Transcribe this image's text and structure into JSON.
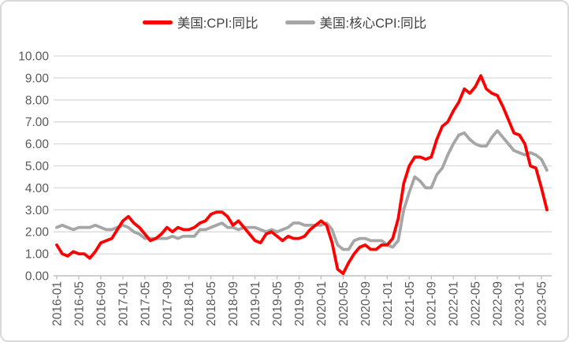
{
  "legend": {
    "items": [
      {
        "label": "美国:CPI:同比",
        "color": "#ff0000"
      },
      {
        "label": "美国:核心CPI:同比",
        "color": "#a6a6a6"
      }
    ]
  },
  "colors": {
    "grid": "#d9d9d9",
    "axis": "#bfbfbf",
    "tick_text": "#595959",
    "legend_text": "#404040",
    "frame_border": "#d9d9d9",
    "background": "#ffffff"
  },
  "chart_data": {
    "type": "line",
    "title": "",
    "xlabel": "",
    "ylabel": "",
    "ylim": [
      0,
      10
    ],
    "y_tick_labels": [
      "0.00",
      "1.00",
      "2.00",
      "3.00",
      "4.00",
      "5.00",
      "6.00",
      "7.00",
      "8.00",
      "9.00",
      "10.00"
    ],
    "grid": true,
    "legend_position": "top",
    "x_tick_every_n_months": 4,
    "x_tick_labels": [
      "2016-01",
      "2016-05",
      "2016-09",
      "2017-01",
      "2017-05",
      "2017-09",
      "2018-01",
      "2018-05",
      "2018-09",
      "2019-01",
      "2019-05",
      "2019-09",
      "2020-01",
      "2020-05",
      "2020-09",
      "2021-01",
      "2021-05",
      "2021-09",
      "2022-01",
      "2022-05",
      "2022-09",
      "2023-01",
      "2023-05"
    ],
    "x_range": "2016-01 to 2023-06, monthly",
    "series": [
      {
        "name": "美国:CPI:同比",
        "color": "#ff0000",
        "values": [
          1.4,
          1.0,
          0.9,
          1.1,
          1.0,
          1.0,
          0.8,
          1.1,
          1.5,
          1.6,
          1.7,
          2.1,
          2.5,
          2.7,
          2.4,
          2.2,
          1.9,
          1.6,
          1.7,
          1.9,
          2.2,
          2.0,
          2.2,
          2.1,
          2.1,
          2.2,
          2.4,
          2.5,
          2.8,
          2.9,
          2.9,
          2.7,
          2.3,
          2.5,
          2.2,
          1.9,
          1.6,
          1.5,
          1.9,
          2.0,
          1.8,
          1.6,
          1.8,
          1.7,
          1.7,
          1.8,
          2.1,
          2.3,
          2.5,
          2.3,
          1.5,
          0.3,
          0.1,
          0.6,
          1.0,
          1.3,
          1.4,
          1.2,
          1.2,
          1.4,
          1.4,
          1.7,
          2.6,
          4.2,
          5.0,
          5.4,
          5.4,
          5.3,
          5.4,
          6.2,
          6.8,
          7.0,
          7.5,
          7.9,
          8.5,
          8.3,
          8.6,
          9.1,
          8.5,
          8.3,
          8.2,
          7.7,
          7.1,
          6.5,
          6.4,
          6.0,
          5.0,
          4.9,
          4.0,
          3.0
        ]
      },
      {
        "name": "美国:核心CPI:同比",
        "color": "#a6a6a6",
        "values": [
          2.2,
          2.3,
          2.2,
          2.1,
          2.2,
          2.2,
          2.2,
          2.3,
          2.2,
          2.1,
          2.1,
          2.2,
          2.3,
          2.2,
          2.0,
          1.9,
          1.7,
          1.7,
          1.7,
          1.7,
          1.7,
          1.8,
          1.7,
          1.8,
          1.8,
          1.8,
          2.1,
          2.1,
          2.2,
          2.3,
          2.4,
          2.2,
          2.2,
          2.1,
          2.2,
          2.2,
          2.2,
          2.1,
          2.0,
          2.1,
          2.0,
          2.1,
          2.2,
          2.4,
          2.4,
          2.3,
          2.3,
          2.3,
          2.3,
          2.4,
          2.1,
          1.4,
          1.2,
          1.2,
          1.6,
          1.7,
          1.7,
          1.6,
          1.6,
          1.6,
          1.4,
          1.3,
          1.6,
          3.0,
          3.8,
          4.5,
          4.3,
          4.0,
          4.0,
          4.6,
          4.9,
          5.5,
          6.0,
          6.4,
          6.5,
          6.2,
          6.0,
          5.9,
          5.9,
          6.3,
          6.6,
          6.3,
          6.0,
          5.7,
          5.6,
          5.5,
          5.6,
          5.5,
          5.3,
          4.8
        ]
      }
    ]
  }
}
